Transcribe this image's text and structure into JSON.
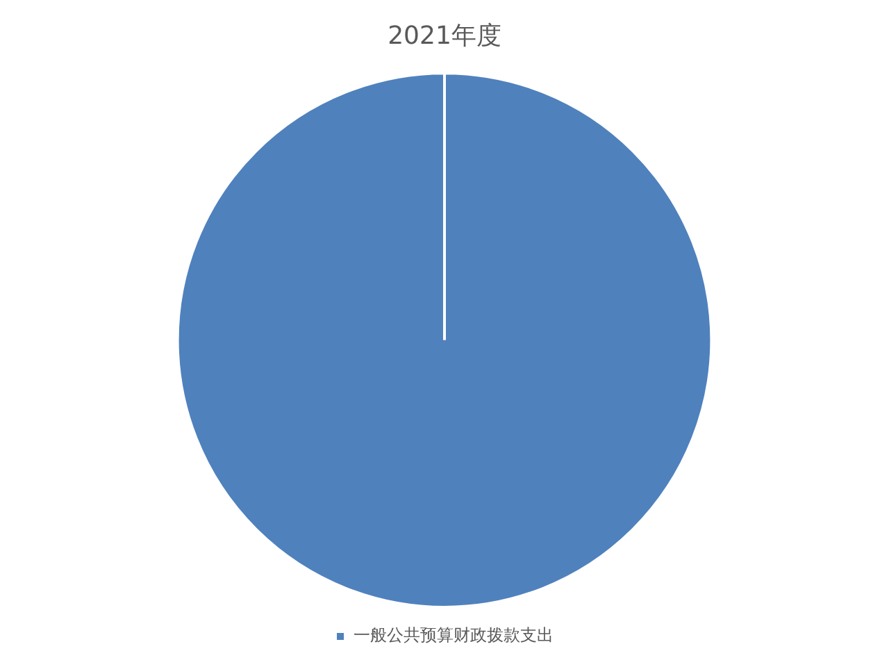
{
  "chart_data": {
    "type": "pie",
    "title": "2021年度",
    "categories": [
      "一般公共预算财政拨款支出"
    ],
    "values": [
      100
    ],
    "colors": [
      "#4f81bd"
    ],
    "legend": "bottom"
  }
}
